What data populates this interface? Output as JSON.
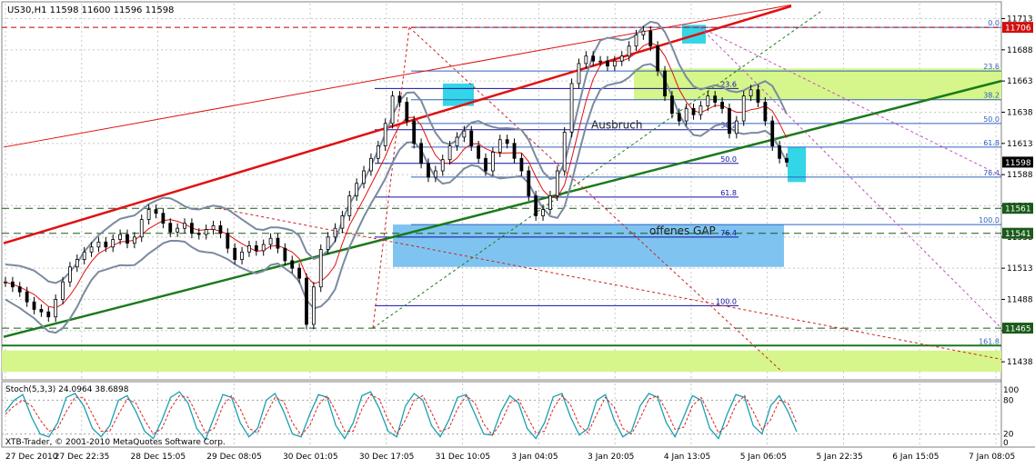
{
  "header": {
    "text": "US30,H1  11598 11600 11596 11598"
  },
  "stoch": {
    "label": "Stoch(5,3,3) 24.0964 38.6898"
  },
  "copyright": "XTB-Trader, © 2001-2010 MetaQuotes Software Corp.",
  "colors": {
    "candle": "#000000",
    "bollinger": "#7a8aa0",
    "ma": "#e01010",
    "trend_red": "#e01010",
    "trend_green": "#1a7a1a",
    "fib_blue": "#1010a0",
    "zone_green": "#d6f58a",
    "zone_blue": "#7fc4f0",
    "highlight_cyan": "#33d6e6"
  },
  "chart_data": {
    "type": "line",
    "instrument": "US30",
    "timeframe": "H1",
    "ohlc": {
      "open": 11598,
      "high": 11600,
      "low": 11596,
      "close": 11598
    },
    "ylim": [
      11425,
      11725
    ],
    "price_ticks": [
      11713,
      11688,
      11663,
      11638,
      11613,
      11588,
      11563,
      11538,
      11513,
      11488,
      11463,
      11438
    ],
    "price_badges": [
      {
        "value": "11706",
        "style": "red"
      },
      {
        "value": "11598",
        "style": "black"
      },
      {
        "value": "11561",
        "style": "green"
      },
      {
        "value": "11541",
        "style": "green"
      },
      {
        "value": "11465",
        "style": "green"
      }
    ],
    "time_labels": [
      "27 Dec 2010",
      "27 Dec 22:35",
      "28 Dec 15:05",
      "29 Dec 08:05",
      "30 Dec 01:05",
      "30 Dec 17:05",
      "31 Dec 10:05",
      "3 Jan 04:05",
      "3 Jan 20:05",
      "4 Jan 13:05",
      "5 Jan 06:05",
      "5 Jan 22:35",
      "6 Jan 15:05",
      "7 Jan 08:05"
    ],
    "price_series": [
      11502,
      11498,
      11494,
      11486,
      11480,
      11478,
      11474,
      11488,
      11502,
      11514,
      11520,
      11526,
      11530,
      11534,
      11530,
      11536,
      11540,
      11533,
      11538,
      11552,
      11560,
      11557,
      11549,
      11542,
      11545,
      11549,
      11541,
      11540,
      11544,
      11547,
      11541,
      11529,
      11520,
      11526,
      11531,
      11527,
      11532,
      11537,
      11529,
      11519,
      11513,
      11505,
      11468,
      11498,
      11528,
      11538,
      11545,
      11555,
      11571,
      11581,
      11591,
      11601,
      11611,
      11629,
      11651,
      11646,
      11631,
      11613,
      11597,
      11586,
      11591,
      11600,
      11611,
      11618,
      11623,
      11611,
      11601,
      11591,
      11606,
      11616,
      11613,
      11601,
      11591,
      11571,
      11555,
      11560,
      11571,
      11591,
      11622,
      11661,
      11677,
      11683,
      11679,
      11679,
      11675,
      11679,
      11683,
      11691,
      11700,
      11703,
      11691,
      11671,
      11651,
      11637,
      11631,
      11641,
      11636,
      11643,
      11651,
      11646,
      11641,
      11621,
      11631,
      11651,
      11656,
      11646,
      11631,
      11611,
      11601,
      11598
    ],
    "fib_levels": [
      {
        "label": "0.0",
        "value": 11706
      },
      {
        "label": "23.6",
        "value": 11671
      },
      {
        "label": "38.2",
        "value": 11648
      },
      {
        "label": "50.0",
        "value": 11629
      },
      {
        "label": "61.8",
        "value": 11610
      },
      {
        "label": "76.4",
        "value": 11586
      },
      {
        "label": "100.0",
        "value": 11548
      },
      {
        "label": "161.8",
        "value": 11451
      }
    ],
    "fib_inner_labels": [
      {
        "label": "23.6",
        "value": 11657
      },
      {
        "label": "38.2",
        "value": 11624
      },
      {
        "label": "50.0",
        "value": 11597
      },
      {
        "label": "61.8",
        "value": 11570
      },
      {
        "label": "76.4",
        "value": 11538
      },
      {
        "label": "100.0",
        "value": 11483
      }
    ],
    "annotations": [
      {
        "text": "Ausbruch",
        "value": 11625
      },
      {
        "text": "offenes GAP",
        "value": 11540
      }
    ],
    "stoch_levels": [
      80,
      20
    ],
    "stoch_scale": [
      100,
      0
    ],
    "stoch_k": [
      60,
      80,
      90,
      50,
      20,
      15,
      40,
      85,
      92,
      70,
      30,
      15,
      35,
      80,
      88,
      60,
      25,
      12,
      45,
      85,
      95,
      75,
      30,
      10,
      50,
      90,
      85,
      40,
      15,
      30,
      80,
      92,
      60,
      20,
      15,
      55,
      90,
      85,
      35,
      12,
      40,
      88,
      95,
      65,
      25,
      15,
      70,
      92,
      80,
      35,
      15,
      45,
      85,
      90,
      55,
      20,
      18,
      60,
      88,
      75,
      30,
      12,
      40,
      86,
      92,
      50,
      18,
      30,
      80,
      90,
      45,
      15,
      25,
      70,
      92,
      85,
      40,
      15,
      50,
      88,
      80,
      30,
      12,
      55,
      90,
      85,
      35,
      20,
      70,
      88,
      60,
      24
    ],
    "stoch_d": [
      55,
      70,
      80,
      70,
      45,
      25,
      30,
      60,
      85,
      85,
      55,
      25,
      25,
      55,
      82,
      75,
      45,
      20,
      30,
      65,
      88,
      85,
      55,
      22,
      30,
      70,
      88,
      65,
      30,
      22,
      55,
      85,
      78,
      40,
      18,
      35,
      72,
      88,
      60,
      25,
      25,
      65,
      90,
      82,
      45,
      20,
      45,
      80,
      88,
      58,
      25,
      30,
      65,
      88,
      75,
      38,
      18,
      40,
      75,
      82,
      52,
      22,
      25,
      65,
      88,
      72,
      35,
      22,
      55,
      85,
      68,
      30,
      20,
      48,
      82,
      88,
      62,
      28,
      32,
      70,
      85,
      55,
      22,
      35,
      72,
      88,
      60,
      28,
      45,
      80,
      75,
      39
    ]
  }
}
